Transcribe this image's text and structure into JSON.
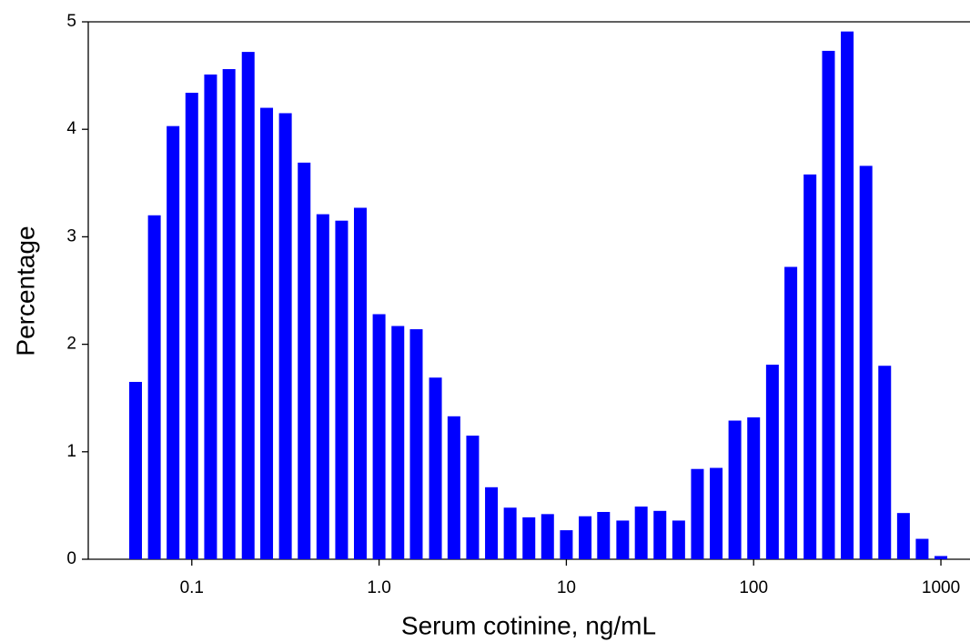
{
  "chart_data": {
    "type": "bar",
    "xlabel": "Serum cotinine, ng/mL",
    "ylabel": "Percentage",
    "x": [
      0.0501,
      0.0631,
      0.0794,
      0.1,
      0.126,
      0.158,
      0.2,
      0.251,
      0.316,
      0.398,
      0.501,
      0.631,
      0.794,
      1,
      1.26,
      1.58,
      2,
      2.51,
      3.16,
      3.98,
      5.01,
      6.31,
      7.94,
      10,
      12.6,
      15.8,
      20,
      25.1,
      31.6,
      39.8,
      50.1,
      63.1,
      79.4,
      100,
      126,
      158,
      200,
      251,
      316,
      398,
      501,
      631,
      794,
      1000
    ],
    "values": [
      1.65,
      3.2,
      4.03,
      4.34,
      4.51,
      4.56,
      4.72,
      4.2,
      4.15,
      3.69,
      3.21,
      3.15,
      3.27,
      2.28,
      2.17,
      2.14,
      1.69,
      1.33,
      1.15,
      0.67,
      0.48,
      0.39,
      0.42,
      0.27,
      0.4,
      0.44,
      0.36,
      0.49,
      0.45,
      0.36,
      0.84,
      0.85,
      1.29,
      1.32,
      1.81,
      2.72,
      3.58,
      4.73,
      4.91,
      3.66,
      1.8,
      0.43,
      0.19,
      0.03
    ],
    "color": "#0000ff",
    "xscale": "log",
    "xlim": [
      0.028,
      1430
    ],
    "xticks": [
      0.1,
      {
        "value": 1,
        "label": "1.0"
      },
      10,
      100,
      1000
    ],
    "ylim": [
      0,
      5
    ],
    "yticks": [
      0,
      1,
      2,
      3,
      4,
      5
    ],
    "grid": false
  }
}
